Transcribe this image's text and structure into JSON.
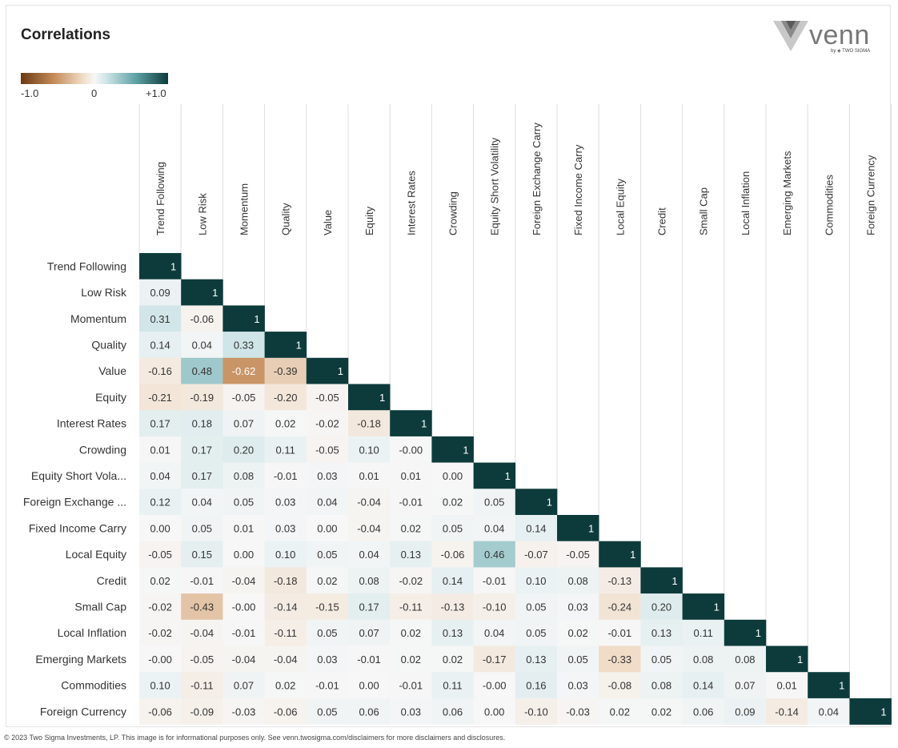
{
  "page": {
    "title": "Correlations",
    "footer": "© 2023 Two Sigma Investments, LP. This image is for informational purposes only. See venn.twosigma.com/disclaimers for more disclaimers and disclosures.",
    "logo": {
      "word": "venn",
      "byline": "by ◈ TWO SIGMA",
      "icon": "venn-logo-icon"
    }
  },
  "legend": {
    "min_label": "-1.0",
    "mid_label": "0",
    "max_label": "+1.0",
    "colors": {
      "negative": "#6b3a12",
      "neutral": "#f7f7f7",
      "positive": "#0d3b3b"
    }
  },
  "chart_data": {
    "type": "heatmap",
    "title": "Correlations",
    "range": [
      -1,
      1
    ],
    "columns": [
      "Trend Following",
      "Low Risk",
      "Momentum",
      "Quality",
      "Value",
      "Equity",
      "Interest Rates",
      "Crowding",
      "Equity Short Volatility",
      "Foreign Exchange Carry",
      "Fixed Income Carry",
      "Local Equity",
      "Credit",
      "Small Cap",
      "Local Inflation",
      "Emerging Markets",
      "Commodities",
      "Foreign Currency"
    ],
    "rows": [
      "Trend Following",
      "Low Risk",
      "Momentum",
      "Quality",
      "Value",
      "Equity",
      "Interest Rates",
      "Crowding",
      "Equity Short Vola...",
      "Foreign Exchange ...",
      "Fixed Income Carry",
      "Local Equity",
      "Credit",
      "Small Cap",
      "Local Inflation",
      "Emerging Markets",
      "Commodities",
      "Foreign Currency"
    ],
    "values": [
      [
        "1"
      ],
      [
        "0.09",
        "1"
      ],
      [
        "0.31",
        "-0.06",
        "1"
      ],
      [
        "0.14",
        "0.04",
        "0.33",
        "1"
      ],
      [
        "-0.16",
        "0.48",
        "-0.62",
        "-0.39",
        "1"
      ],
      [
        "-0.21",
        "-0.19",
        "-0.05",
        "-0.20",
        "-0.05",
        "1"
      ],
      [
        "0.17",
        "0.18",
        "0.07",
        "0.02",
        "-0.02",
        "-0.18",
        "1"
      ],
      [
        "0.01",
        "0.17",
        "0.20",
        "0.11",
        "-0.05",
        "0.10",
        "-0.00",
        "1"
      ],
      [
        "0.04",
        "0.17",
        "0.08",
        "-0.01",
        "0.03",
        "0.01",
        "0.01",
        "0.00",
        "1"
      ],
      [
        "0.12",
        "0.04",
        "0.05",
        "0.03",
        "0.04",
        "-0.04",
        "-0.01",
        "0.02",
        "0.05",
        "1"
      ],
      [
        "0.00",
        "0.05",
        "0.01",
        "0.03",
        "0.00",
        "-0.04",
        "0.02",
        "0.05",
        "0.04",
        "0.14",
        "1"
      ],
      [
        "-0.05",
        "0.15",
        "0.00",
        "0.10",
        "0.05",
        "0.04",
        "0.13",
        "-0.06",
        "0.46",
        "-0.07",
        "-0.05",
        "1"
      ],
      [
        "0.02",
        "-0.01",
        "-0.04",
        "-0.18",
        "0.02",
        "0.08",
        "-0.02",
        "0.14",
        "-0.01",
        "0.10",
        "0.08",
        "-0.13",
        "1"
      ],
      [
        "-0.02",
        "-0.43",
        "-0.00",
        "-0.14",
        "-0.15",
        "0.17",
        "-0.11",
        "-0.13",
        "-0.10",
        "0.05",
        "0.03",
        "-0.24",
        "0.20",
        "1"
      ],
      [
        "-0.02",
        "-0.04",
        "-0.01",
        "-0.11",
        "0.05",
        "0.07",
        "0.02",
        "0.13",
        "0.04",
        "0.05",
        "0.02",
        "-0.01",
        "0.13",
        "0.11",
        "1"
      ],
      [
        "-0.00",
        "-0.05",
        "-0.04",
        "-0.04",
        "0.03",
        "-0.01",
        "0.02",
        "0.02",
        "-0.17",
        "0.13",
        "0.05",
        "-0.33",
        "0.05",
        "0.08",
        "0.08",
        "1"
      ],
      [
        "0.10",
        "-0.11",
        "0.07",
        "0.02",
        "-0.01",
        "0.00",
        "-0.01",
        "0.11",
        "-0.00",
        "0.16",
        "0.03",
        "-0.08",
        "0.08",
        "0.14",
        "0.07",
        "0.01",
        "1"
      ],
      [
        "-0.06",
        "-0.09",
        "-0.03",
        "-0.06",
        "0.05",
        "0.06",
        "0.03",
        "0.06",
        "0.00",
        "-0.10",
        "-0.03",
        "0.02",
        "0.02",
        "0.06",
        "0.09",
        "-0.14",
        "0.04",
        "1"
      ]
    ]
  }
}
